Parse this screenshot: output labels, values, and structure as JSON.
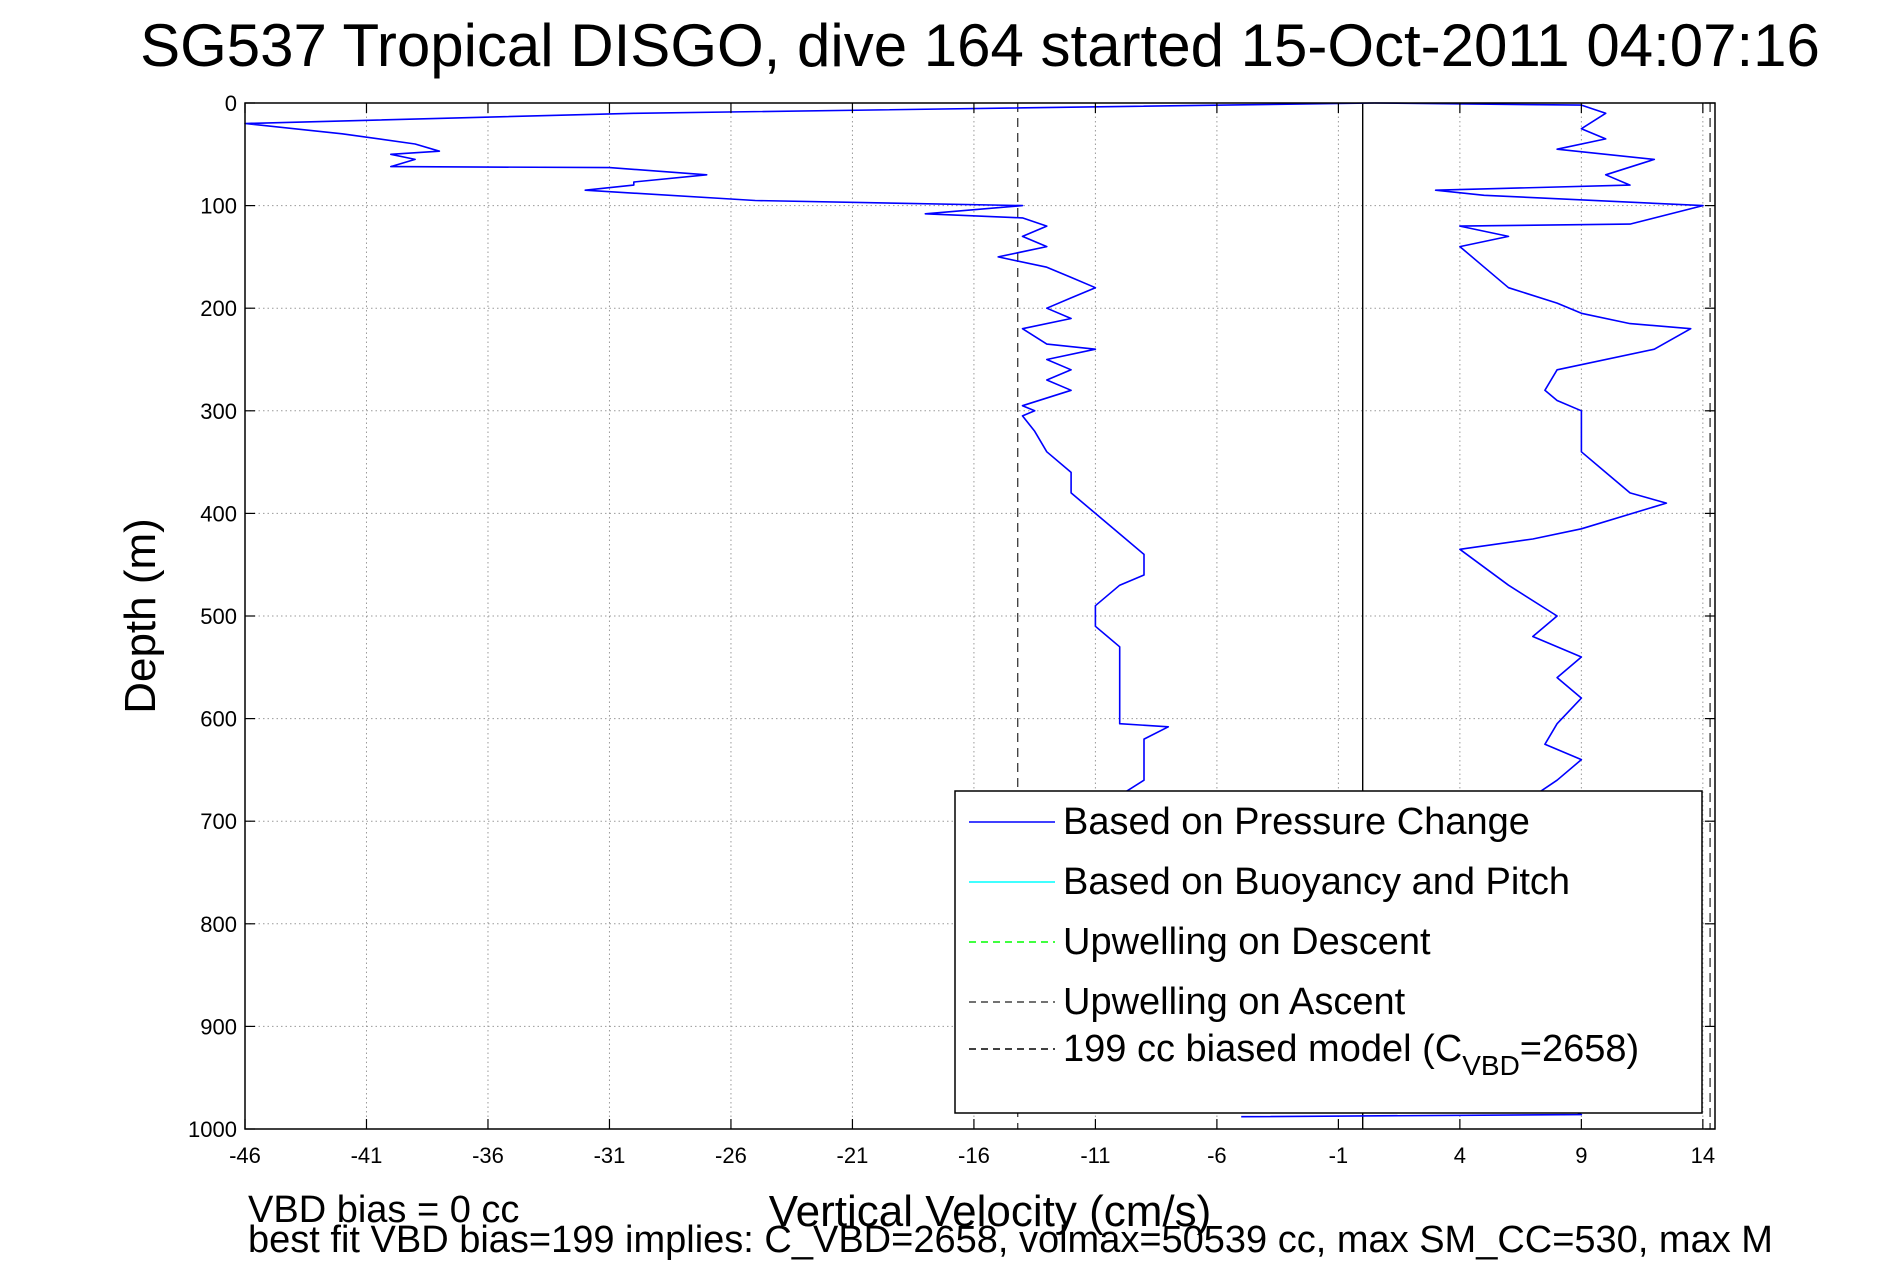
{
  "chart_data": {
    "type": "line",
    "title": "SG537 Tropical DISGO, dive 164 started 15-Oct-2011 04:07:16",
    "xlabel": "Vertical Velocity (cm/s)",
    "ylabel": "Depth (m)",
    "xlim": [
      -46,
      14.5
    ],
    "ylim": [
      0,
      1000
    ],
    "y_reversed": true,
    "x_ticks": [
      "-46",
      "-41",
      "-36",
      "-31",
      "-26",
      "-21",
      "-16",
      "-11",
      "-6",
      "-1",
      "4",
      "9",
      "14"
    ],
    "y_ticks": [
      "0",
      "100",
      "200",
      "300",
      "400",
      "500",
      "600",
      "700",
      "800",
      "900",
      "1000"
    ],
    "grid": true,
    "legend_position": "bottom-right",
    "series": [
      {
        "name": "Based on Pressure Change",
        "color": "#0000ff",
        "style": "solid",
        "segments": [
          {
            "part": "descent",
            "points": [
              [
                0.5,
                0
              ],
              [
                -30,
                10
              ],
              [
                -46,
                20
              ],
              [
                -42,
                30
              ],
              [
                -39,
                40
              ],
              [
                -38,
                47
              ],
              [
                -40,
                50
              ],
              [
                -39,
                55
              ],
              [
                -40,
                62
              ],
              [
                -31,
                63
              ],
              [
                -27,
                70
              ],
              [
                -30,
                77
              ],
              [
                -30,
                80
              ],
              [
                -32,
                85
              ],
              [
                -25,
                95
              ],
              [
                -14,
                100
              ],
              [
                -18,
                108
              ],
              [
                -14,
                112
              ],
              [
                -13,
                120
              ],
              [
                -14,
                130
              ],
              [
                -13,
                140
              ],
              [
                -15,
                150
              ],
              [
                -13,
                160
              ],
              [
                -12,
                170
              ],
              [
                -11,
                180
              ],
              [
                -12,
                190
              ],
              [
                -13,
                200
              ],
              [
                -12,
                210
              ],
              [
                -14,
                220
              ],
              [
                -13,
                235
              ],
              [
                -11,
                240
              ],
              [
                -13,
                250
              ],
              [
                -12,
                260
              ],
              [
                -13,
                270
              ],
              [
                -12,
                280
              ],
              [
                -14,
                295
              ],
              [
                -13.5,
                300
              ],
              [
                -14,
                305
              ],
              [
                -13.5,
                320
              ],
              [
                -13,
                340
              ],
              [
                -12,
                360
              ],
              [
                -12,
                380
              ],
              [
                -11,
                400
              ],
              [
                -10,
                420
              ],
              [
                -9,
                440
              ],
              [
                -9,
                460
              ],
              [
                -10,
                470
              ],
              [
                -11,
                490
              ],
              [
                -11,
                510
              ],
              [
                -10,
                530
              ],
              [
                -10,
                560
              ],
              [
                -10,
                590
              ],
              [
                -10,
                605
              ],
              [
                -8,
                608
              ],
              [
                -9,
                620
              ],
              [
                -9,
                640
              ],
              [
                -9,
                660
              ],
              [
                -10,
                675
              ],
              [
                -9,
                690
              ],
              [
                -8,
                700
              ]
            ]
          },
          {
            "part": "ascent",
            "points": [
              [
                -5,
                988
              ],
              [
                9,
                986
              ],
              [
                8.5,
                980
              ],
              [
                7,
                676
              ],
              [
                8,
                660
              ],
              [
                9,
                640
              ],
              [
                7.5,
                625
              ],
              [
                8,
                605
              ],
              [
                9,
                580
              ],
              [
                8,
                560
              ],
              [
                9,
                540
              ],
              [
                7,
                520
              ],
              [
                8,
                500
              ],
              [
                6,
                470
              ],
              [
                4,
                435
              ],
              [
                7,
                425
              ],
              [
                9,
                415
              ],
              [
                12.5,
                390
              ],
              [
                11,
                380
              ],
              [
                10,
                360
              ],
              [
                9,
                340
              ],
              [
                9,
                320
              ],
              [
                9,
                300
              ],
              [
                8,
                290
              ],
              [
                7.5,
                280
              ],
              [
                8,
                260
              ],
              [
                12,
                240
              ],
              [
                13.5,
                220
              ],
              [
                11,
                215
              ],
              [
                9,
                205
              ],
              [
                8,
                195
              ],
              [
                6,
                180
              ],
              [
                5,
                160
              ],
              [
                4,
                140
              ],
              [
                6,
                130
              ],
              [
                4,
                120
              ],
              [
                11,
                118
              ],
              [
                14,
                100
              ],
              [
                5,
                90
              ],
              [
                3,
                85
              ],
              [
                11,
                80
              ],
              [
                10,
                70
              ],
              [
                12,
                55
              ],
              [
                8,
                45
              ],
              [
                10,
                35
              ],
              [
                9,
                25
              ],
              [
                10,
                10
              ],
              [
                9,
                2
              ],
              [
                0.5,
                0
              ]
            ]
          }
        ]
      },
      {
        "name": "Based on Buoyancy and Pitch",
        "color": "#00ffff",
        "style": "solid",
        "segments": []
      },
      {
        "name": "Upwelling on Descent",
        "color": "#00ff00",
        "style": "dashed",
        "segments": []
      },
      {
        "name": "Upwelling on Ascent",
        "color": "#444444",
        "style": "dashed",
        "segments": [
          {
            "part": "descent",
            "points": [
              [
                -14.2,
                0
              ],
              [
                -14.2,
                1000
              ]
            ]
          },
          {
            "part": "ascent",
            "points": [
              [
                14.3,
                0
              ],
              [
                14.3,
                1000
              ]
            ]
          }
        ]
      },
      {
        "name_prefix": "199 cc biased model (C",
        "name_sub": "VBD",
        "name_suffix": "=2658)",
        "color": "#000000",
        "style": "solid",
        "segments": [
          {
            "part": "zero",
            "points": [
              [
                0,
                0
              ],
              [
                0,
                1000
              ]
            ]
          }
        ]
      }
    ],
    "annotations": [
      "VBD bias = 0 cc",
      "best fit VBD bias=199 implies: C_VBD=2658, volmax=50539 cc, max SM_CC=530, max M"
    ]
  }
}
